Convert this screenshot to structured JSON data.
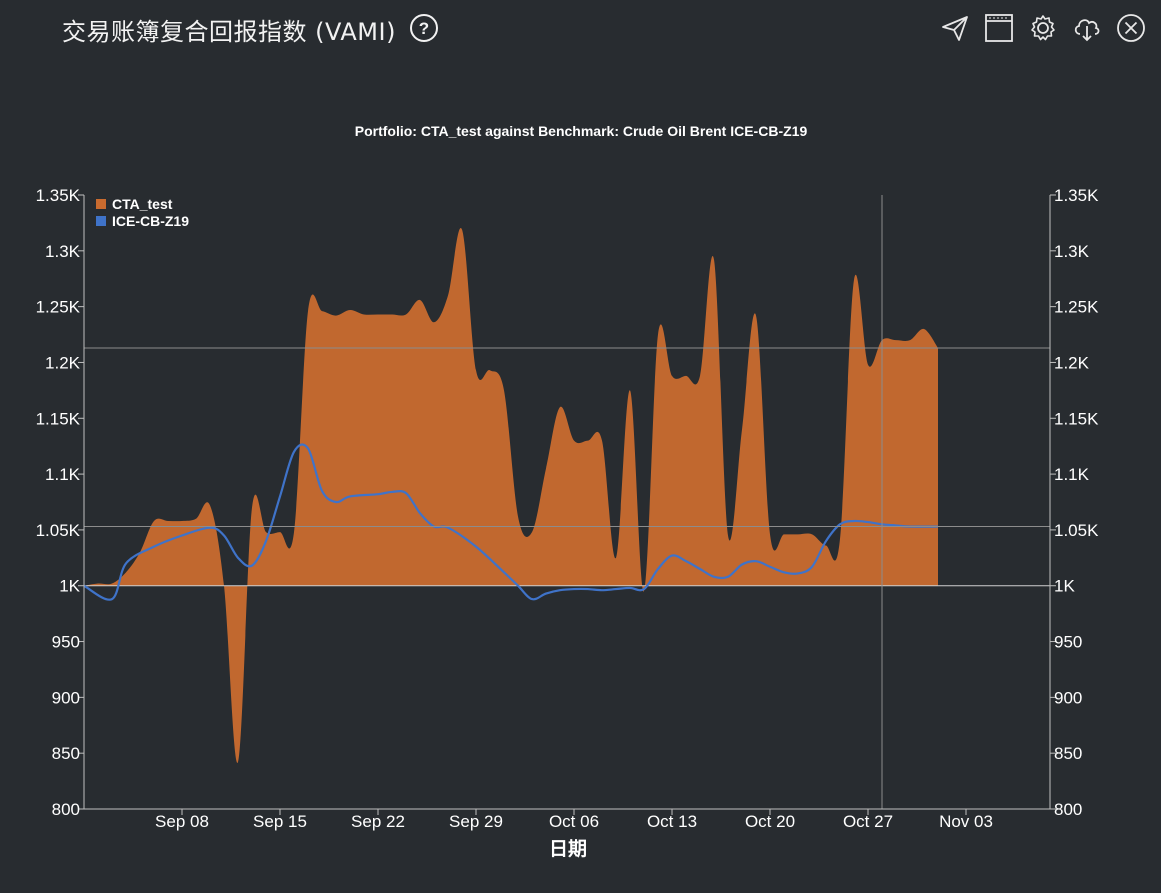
{
  "header": {
    "title": "交易账簿复合回报指数 (VAMI)",
    "help_icon": "question-circle-icon"
  },
  "toolbar": [
    {
      "name": "send-icon",
      "label": "send"
    },
    {
      "name": "window-icon",
      "label": "window"
    },
    {
      "name": "gear-icon",
      "label": "settings"
    },
    {
      "name": "cloud-download-icon",
      "label": "download"
    },
    {
      "name": "close-icon",
      "label": "close"
    }
  ],
  "colors": {
    "background": "#282c30",
    "cta_fill": "#c96b2f",
    "benchmark_line": "#3f73c9",
    "axis": "#bfbfbf",
    "text": "#ffffff"
  },
  "chart_data": {
    "type": "area",
    "title": "Portfolio: CTA_test against Benchmark: Crude Oil Brent ICE-CB-Z19",
    "xlabel": "日期",
    "ylabel": "",
    "ylim": [
      800,
      1350
    ],
    "y_ticks": [
      800,
      850,
      900,
      950,
      1000,
      1050,
      1100,
      1150,
      1200,
      1250,
      1300,
      1350
    ],
    "y_tick_labels": [
      "800",
      "850",
      "900",
      "950",
      "1K",
      "1.05K",
      "1.1K",
      "1.15K",
      "1.2K",
      "1.25K",
      "1.3K",
      "1.35K"
    ],
    "x_range": [
      "2019-09-01",
      "2019-11-09"
    ],
    "x_ticks": [
      "2019-09-08",
      "2019-09-15",
      "2019-09-22",
      "2019-09-29",
      "2019-10-06",
      "2019-10-13",
      "2019-10-20",
      "2019-10-27",
      "2019-11-03"
    ],
    "x_tick_labels": [
      "Sep 08",
      "Sep 15",
      "Sep 22",
      "Sep 29",
      "Oct 06",
      "Oct 13",
      "Oct 20",
      "Oct 27",
      "Nov 03"
    ],
    "baseline": 1000,
    "legend_position": "top-left",
    "grid": false,
    "crosshair": {
      "date": "2019-10-28",
      "value": 1213
    },
    "right_axis_labels": [
      "800",
      "850",
      "900",
      "950",
      "1K",
      "1.05K",
      "1.1K",
      "1.15K",
      "1.2K",
      "1.25K",
      "1.3K",
      "1.35K"
    ],
    "series": [
      {
        "name": "CTA_test",
        "style": "area",
        "color": "#c96b2f",
        "points": [
          [
            "2019-09-01",
            1000
          ],
          [
            "2019-09-02",
            1002
          ],
          [
            "2019-09-03",
            1002
          ],
          [
            "2019-09-04",
            1012
          ],
          [
            "2019-09-05",
            1030
          ],
          [
            "2019-09-06",
            1058
          ],
          [
            "2019-09-07",
            1058
          ],
          [
            "2019-09-08",
            1058
          ],
          [
            "2019-09-09",
            1060
          ],
          [
            "2019-09-10",
            1072
          ],
          [
            "2019-09-11",
            1000
          ],
          [
            "2019-09-12",
            842
          ],
          [
            "2019-09-13",
            1070
          ],
          [
            "2019-09-14",
            1048
          ],
          [
            "2019-09-15",
            1048
          ],
          [
            "2019-09-16",
            1048
          ],
          [
            "2019-09-17",
            1246
          ],
          [
            "2019-09-18",
            1246
          ],
          [
            "2019-09-19",
            1242
          ],
          [
            "2019-09-20",
            1247
          ],
          [
            "2019-09-21",
            1243
          ],
          [
            "2019-09-22",
            1243
          ],
          [
            "2019-09-23",
            1243
          ],
          [
            "2019-09-24",
            1243
          ],
          [
            "2019-09-25",
            1256
          ],
          [
            "2019-09-26",
            1236
          ],
          [
            "2019-09-27",
            1260
          ],
          [
            "2019-09-28",
            1319
          ],
          [
            "2019-09-29",
            1193
          ],
          [
            "2019-09-30",
            1193
          ],
          [
            "2019-10-01",
            1175
          ],
          [
            "2019-10-02",
            1062
          ],
          [
            "2019-10-03",
            1048
          ],
          [
            "2019-10-04",
            1105
          ],
          [
            "2019-10-05",
            1160
          ],
          [
            "2019-10-06",
            1130
          ],
          [
            "2019-10-07",
            1130
          ],
          [
            "2019-10-08",
            1130
          ],
          [
            "2019-10-09",
            1025
          ],
          [
            "2019-10-10",
            1175
          ],
          [
            "2019-10-11",
            995
          ],
          [
            "2019-10-12",
            1225
          ],
          [
            "2019-10-13",
            1188
          ],
          [
            "2019-10-14",
            1188
          ],
          [
            "2019-10-15",
            1188
          ],
          [
            "2019-10-16",
            1292
          ],
          [
            "2019-10-17",
            1045
          ],
          [
            "2019-10-18",
            1140
          ],
          [
            "2019-10-19",
            1242
          ],
          [
            "2019-10-20",
            1046
          ],
          [
            "2019-10-21",
            1046
          ],
          [
            "2019-10-22",
            1046
          ],
          [
            "2019-10-23",
            1046
          ],
          [
            "2019-10-24",
            1036
          ],
          [
            "2019-10-25",
            1042
          ],
          [
            "2019-10-26",
            1274
          ],
          [
            "2019-10-27",
            1198
          ],
          [
            "2019-10-28",
            1220
          ],
          [
            "2019-10-29",
            1220
          ],
          [
            "2019-10-30",
            1220
          ],
          [
            "2019-10-31",
            1230
          ],
          [
            "2019-11-01",
            1213
          ]
        ]
      },
      {
        "name": "ICE-CB-Z19",
        "style": "line",
        "color": "#3f73c9",
        "points": [
          [
            "2019-09-01",
            1000
          ],
          [
            "2019-09-03",
            988
          ],
          [
            "2019-09-04",
            1020
          ],
          [
            "2019-09-06",
            1035
          ],
          [
            "2019-09-08",
            1045
          ],
          [
            "2019-09-10",
            1052
          ],
          [
            "2019-09-11",
            1045
          ],
          [
            "2019-09-12",
            1025
          ],
          [
            "2019-09-13",
            1018
          ],
          [
            "2019-09-14",
            1040
          ],
          [
            "2019-09-15",
            1080
          ],
          [
            "2019-09-16",
            1120
          ],
          [
            "2019-09-17",
            1123
          ],
          [
            "2019-09-18",
            1085
          ],
          [
            "2019-09-19",
            1075
          ],
          [
            "2019-09-20",
            1080
          ],
          [
            "2019-09-22",
            1082
          ],
          [
            "2019-09-23",
            1084
          ],
          [
            "2019-09-24",
            1083
          ],
          [
            "2019-09-25",
            1065
          ],
          [
            "2019-09-26",
            1053
          ],
          [
            "2019-09-27",
            1052
          ],
          [
            "2019-09-29",
            1035
          ],
          [
            "2019-10-01",
            1012
          ],
          [
            "2019-10-02",
            1000
          ],
          [
            "2019-10-03",
            988
          ],
          [
            "2019-10-04",
            993
          ],
          [
            "2019-10-05",
            996
          ],
          [
            "2019-10-06",
            997
          ],
          [
            "2019-10-07",
            997
          ],
          [
            "2019-10-08",
            996
          ],
          [
            "2019-10-09",
            997
          ],
          [
            "2019-10-10",
            998
          ],
          [
            "2019-10-11",
            997
          ],
          [
            "2019-10-12",
            1015
          ],
          [
            "2019-10-13",
            1027
          ],
          [
            "2019-10-14",
            1022
          ],
          [
            "2019-10-15",
            1015
          ],
          [
            "2019-10-16",
            1008
          ],
          [
            "2019-10-17",
            1008
          ],
          [
            "2019-10-18",
            1019
          ],
          [
            "2019-10-19",
            1022
          ],
          [
            "2019-10-20",
            1017
          ],
          [
            "2019-10-21",
            1012
          ],
          [
            "2019-10-22",
            1011
          ],
          [
            "2019-10-23",
            1017
          ],
          [
            "2019-10-24",
            1040
          ],
          [
            "2019-10-25",
            1055
          ],
          [
            "2019-10-26",
            1058
          ],
          [
            "2019-10-27",
            1057
          ],
          [
            "2019-10-28",
            1055
          ],
          [
            "2019-10-29",
            1054
          ],
          [
            "2019-10-30",
            1053
          ],
          [
            "2019-11-01",
            1053
          ]
        ]
      }
    ]
  }
}
